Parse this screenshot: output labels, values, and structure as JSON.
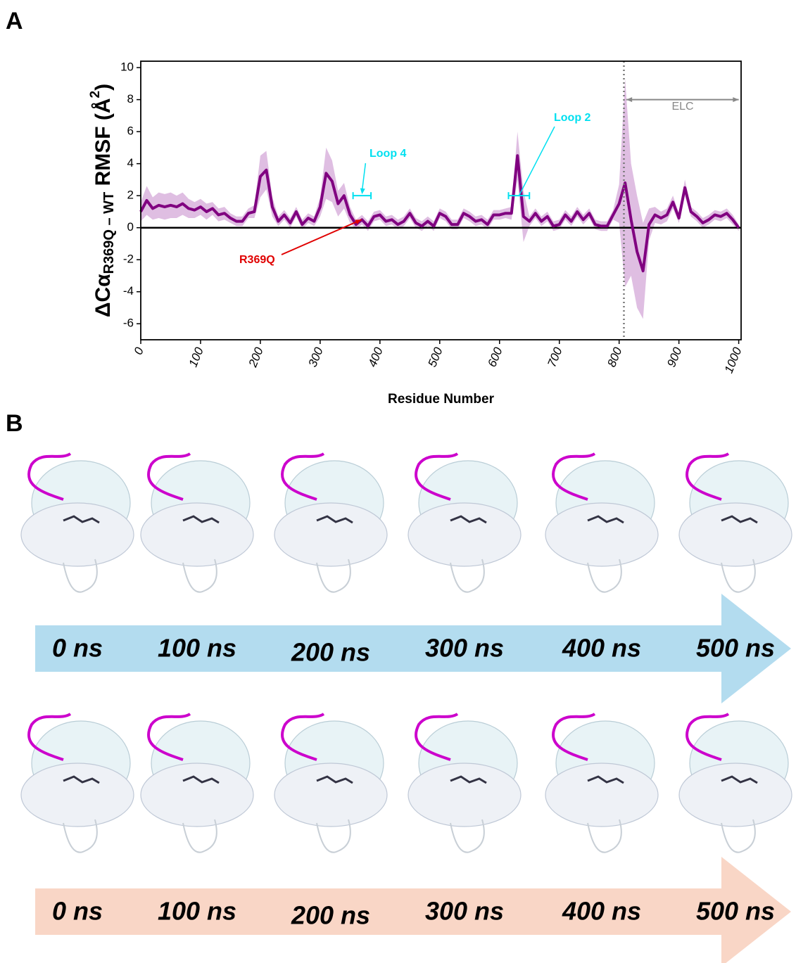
{
  "panel_labels": {
    "a": "A",
    "b": "B"
  },
  "chart_data": {
    "type": "line",
    "xlabel": "Residue Number",
    "ylabel": {
      "main": "ΔCα",
      "sub": "R369Q – WT",
      "rest": " RMSF (Å",
      "sup": "2",
      "end": ")"
    },
    "xlim": [
      0,
      1004
    ],
    "ylim": [
      -7,
      10.4
    ],
    "xticks": [
      0,
      100,
      200,
      300,
      400,
      500,
      600,
      700,
      800,
      900,
      1000
    ],
    "yticks": [
      -6,
      -4,
      -2,
      0,
      2,
      4,
      6,
      8,
      10
    ],
    "hline": 0,
    "vline": 808,
    "x": [
      0,
      10,
      20,
      30,
      40,
      50,
      60,
      70,
      80,
      90,
      100,
      110,
      120,
      130,
      140,
      150,
      160,
      170,
      180,
      190,
      200,
      210,
      220,
      230,
      240,
      250,
      260,
      270,
      280,
      290,
      300,
      310,
      320,
      330,
      340,
      350,
      360,
      370,
      380,
      390,
      400,
      410,
      420,
      430,
      440,
      450,
      460,
      470,
      480,
      490,
      500,
      510,
      520,
      530,
      540,
      550,
      560,
      570,
      580,
      590,
      600,
      610,
      620,
      630,
      640,
      650,
      660,
      670,
      680,
      690,
      700,
      710,
      720,
      730,
      740,
      750,
      760,
      770,
      780,
      790,
      800,
      810,
      820,
      830,
      840,
      850,
      860,
      870,
      880,
      890,
      900,
      910,
      920,
      930,
      940,
      950,
      960,
      970,
      980,
      990,
      1000
    ],
    "series": [
      {
        "color": "#800080",
        "band_color": "#d9b3dd",
        "values": [
          1.0,
          1.7,
          1.2,
          1.4,
          1.3,
          1.4,
          1.3,
          1.5,
          1.2,
          1.1,
          1.3,
          1.0,
          1.2,
          0.8,
          0.9,
          0.6,
          0.4,
          0.4,
          0.9,
          1.0,
          3.2,
          3.6,
          1.3,
          0.4,
          0.8,
          0.3,
          1.0,
          0.2,
          0.6,
          0.4,
          1.3,
          3.4,
          2.9,
          1.5,
          2.0,
          0.8,
          0.2,
          0.5,
          0.1,
          0.7,
          0.8,
          0.4,
          0.5,
          0.2,
          0.4,
          0.9,
          0.3,
          0.1,
          0.4,
          0.1,
          0.9,
          0.7,
          0.2,
          0.2,
          0.9,
          0.7,
          0.4,
          0.5,
          0.2,
          0.8,
          0.8,
          0.9,
          0.9,
          4.5,
          0.7,
          0.4,
          0.9,
          0.4,
          0.7,
          0.1,
          0.2,
          0.8,
          0.4,
          1.0,
          0.5,
          0.9,
          0.2,
          0.1,
          0.1,
          0.8,
          1.5,
          2.8,
          0.5,
          -1.5,
          -2.7,
          0.2,
          0.8,
          0.6,
          0.8,
          1.6,
          0.6,
          2.5,
          1.0,
          0.7,
          0.3,
          0.5,
          0.8,
          0.7,
          0.9,
          0.5,
          0.0
        ],
        "errors": [
          0.6,
          0.9,
          0.7,
          0.8,
          0.8,
          0.8,
          0.7,
          0.7,
          0.6,
          0.5,
          0.5,
          0.5,
          0.4,
          0.4,
          0.4,
          0.3,
          0.3,
          0.3,
          0.3,
          0.4,
          1.3,
          1.2,
          0.6,
          0.3,
          0.3,
          0.3,
          0.3,
          0.3,
          0.3,
          0.3,
          0.6,
          1.6,
          1.3,
          0.8,
          0.8,
          0.5,
          0.3,
          0.3,
          0.3,
          0.3,
          0.3,
          0.3,
          0.3,
          0.3,
          0.3,
          0.3,
          0.3,
          0.3,
          0.3,
          0.3,
          0.3,
          0.3,
          0.3,
          0.3,
          0.3,
          0.3,
          0.3,
          0.3,
          0.3,
          0.3,
          0.3,
          0.3,
          0.4,
          1.5,
          1.6,
          0.3,
          0.3,
          0.3,
          0.3,
          0.3,
          0.3,
          0.3,
          0.3,
          0.3,
          0.3,
          0.3,
          0.3,
          0.3,
          0.3,
          0.3,
          1.2,
          6.5,
          3.5,
          3.5,
          3.0,
          1.0,
          0.5,
          0.4,
          0.4,
          0.4,
          0.3,
          0.5,
          0.3,
          0.3,
          0.3,
          0.3,
          0.3,
          0.3,
          0.3,
          0.3,
          0.2
        ]
      }
    ],
    "annotations": [
      {
        "text": "Loop 4",
        "color": "#00e0f0",
        "range": [
          355,
          385
        ],
        "y": 2
      },
      {
        "text": "Loop 2",
        "color": "#00e0f0",
        "range": [
          615,
          650
        ],
        "y": 2
      },
      {
        "text": "R369Q",
        "color": "#e00000",
        "x": 369,
        "y": 0.5
      },
      {
        "text": "ELC",
        "color": "#888888",
        "range": [
          812,
          1000
        ],
        "y": 8
      }
    ]
  },
  "timelines": [
    {
      "color": "#b3dcef",
      "labels": [
        "0 ns",
        "100 ns",
        "200 ns",
        "300 ns",
        "400 ns",
        "500 ns"
      ]
    },
    {
      "color": "#f9d6c6",
      "labels": [
        "0 ns",
        "100 ns",
        "200 ns",
        "300 ns",
        "400 ns",
        "500 ns"
      ]
    }
  ]
}
